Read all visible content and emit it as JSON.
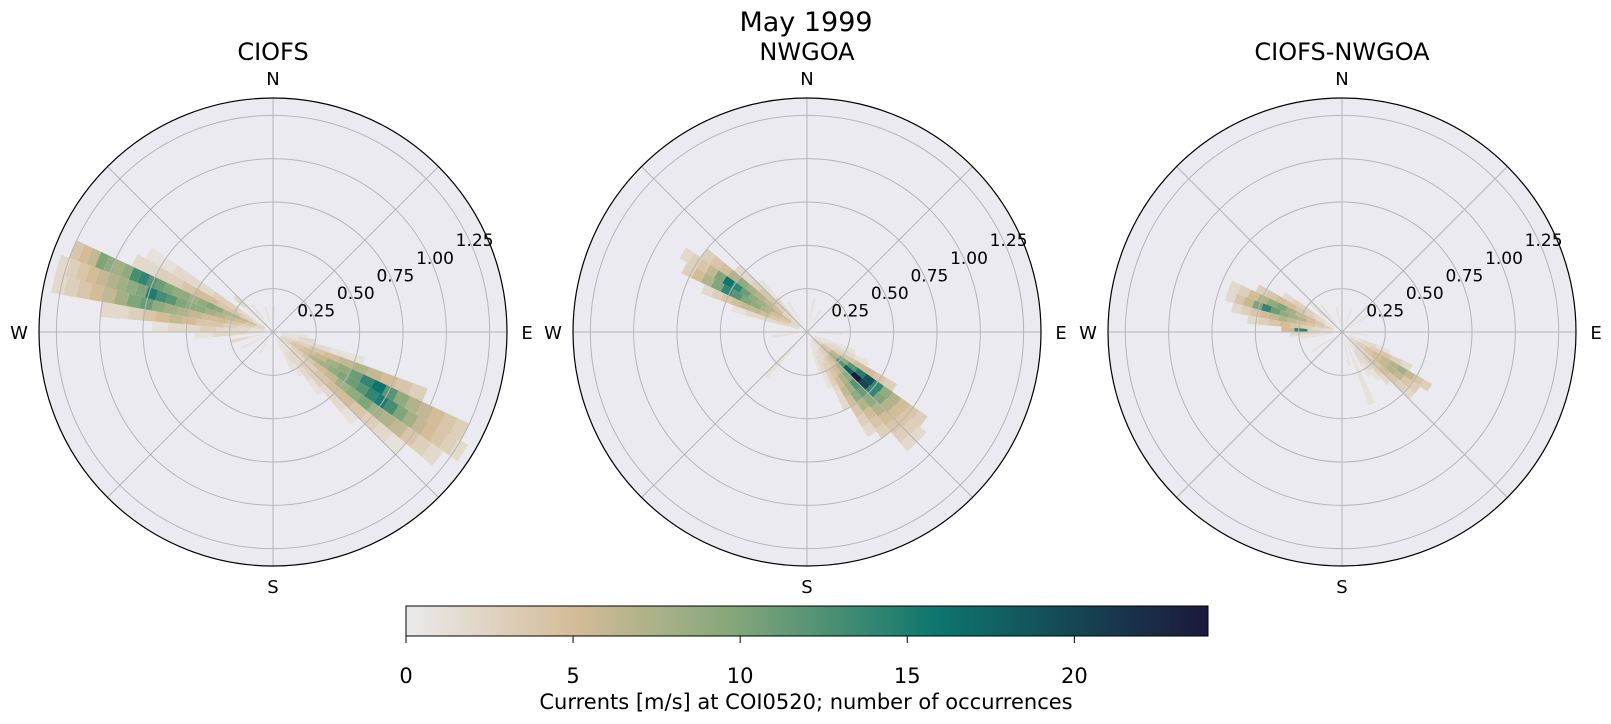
{
  "title": "May 1999",
  "chart_data": [
    {
      "type": "polar-histogram",
      "title": "CIOFS",
      "direction_labels": [
        "N",
        "E",
        "S",
        "W"
      ],
      "r_ticks": [
        "0.25",
        "0.50",
        "0.75",
        "1.00",
        "1.25"
      ],
      "rlim": [
        0,
        1.35
      ],
      "grid": true,
      "bins": [
        {
          "dir": 292.5,
          "r": [
            0.05,
            1.25
          ],
          "counts": [
            3,
            5,
            6,
            7,
            7,
            9,
            10,
            9,
            8,
            9,
            9,
            10,
            11,
            12,
            14,
            13,
            9,
            8,
            9,
            10,
            6,
            5,
            4
          ]
        },
        {
          "dir": 287.5,
          "r": [
            0.05,
            1.3
          ],
          "counts": [
            2,
            4,
            5,
            6,
            7,
            8,
            9,
            9,
            10,
            12,
            13,
            15,
            10,
            9,
            8,
            7,
            6,
            5,
            4,
            3,
            2
          ]
        },
        {
          "dir": 282.5,
          "r": [
            0.05,
            1.3
          ],
          "counts": [
            2,
            3,
            4,
            5,
            5,
            6,
            7,
            8,
            9,
            11,
            10,
            8,
            6,
            5,
            4,
            3,
            2
          ]
        },
        {
          "dir": 277.5,
          "r": [
            0.05,
            1.0
          ],
          "counts": [
            1,
            2,
            3,
            4,
            4,
            5,
            6,
            5,
            4,
            3,
            2,
            2
          ]
        },
        {
          "dir": 297.5,
          "r": [
            0.05,
            0.9
          ],
          "counts": [
            2,
            3,
            4,
            4,
            5,
            5,
            4,
            3,
            3,
            2,
            2
          ]
        },
        {
          "dir": 302.5,
          "r": [
            0.05,
            0.85
          ],
          "counts": [
            1,
            2,
            3,
            3,
            2,
            2,
            2,
            1,
            1
          ]
        },
        {
          "dir": 272.5,
          "r": [
            0.05,
            0.7
          ],
          "counts": [
            1,
            2,
            2,
            3,
            2,
            2,
            1
          ]
        },
        {
          "dir": 267.5,
          "r": [
            0.05,
            0.45
          ],
          "counts": [
            1,
            2,
            2,
            1
          ]
        },
        {
          "dir": 122.5,
          "r": [
            0.05,
            1.3
          ],
          "counts": [
            3,
            4,
            5,
            7,
            8,
            9,
            10,
            11,
            12,
            14,
            15,
            13,
            10,
            8,
            6,
            5,
            4,
            3,
            2
          ]
        },
        {
          "dir": 117.5,
          "r": [
            0.05,
            1.25
          ],
          "counts": [
            2,
            4,
            5,
            6,
            8,
            9,
            11,
            14,
            16,
            12,
            9,
            7,
            6,
            5,
            4,
            3
          ]
        },
        {
          "dir": 127.5,
          "r": [
            0.05,
            1.2
          ],
          "counts": [
            2,
            3,
            4,
            5,
            6,
            8,
            9,
            10,
            8,
            7,
            6,
            4,
            3,
            2
          ]
        },
        {
          "dir": 112.5,
          "r": [
            0.05,
            0.95
          ],
          "counts": [
            2,
            3,
            4,
            5,
            6,
            7,
            6,
            5,
            4,
            3
          ]
        },
        {
          "dir": 132.5,
          "r": [
            0.05,
            1.0
          ],
          "counts": [
            1,
            2,
            3,
            4,
            5,
            5,
            4,
            3,
            2,
            1
          ]
        },
        {
          "dir": 137.5,
          "r": [
            0.05,
            0.7
          ],
          "counts": [
            1,
            2,
            3,
            3,
            2,
            2,
            1
          ]
        },
        {
          "dir": 142.5,
          "r": [
            0.05,
            0.45
          ],
          "counts": [
            1,
            2,
            2,
            1
          ]
        },
        {
          "dir": 107.5,
          "r": [
            0.05,
            0.55
          ],
          "counts": [
            1,
            2,
            2,
            1,
            1
          ]
        },
        {
          "dir": 102.5,
          "r": [
            0.05,
            0.25
          ],
          "counts": [
            1,
            2
          ]
        },
        {
          "dir": 147.5,
          "r": [
            0.05,
            0.3
          ],
          "counts": [
            1,
            2,
            1
          ]
        },
        {
          "dir": 152.5,
          "r": [
            0.05,
            0.25
          ],
          "counts": [
            1,
            1
          ]
        },
        {
          "dir": 312.5,
          "r": [
            0.05,
            0.3
          ],
          "counts": [
            1,
            1,
            2
          ]
        },
        {
          "dir": 322.5,
          "r": [
            0.05,
            0.2
          ],
          "counts": [
            1,
            1
          ]
        },
        {
          "dir": 342.5,
          "r": [
            0.05,
            0.15
          ],
          "counts": [
            1
          ]
        },
        {
          "dir": 2.5,
          "r": [
            0.05,
            0.15
          ],
          "counts": [
            1
          ]
        },
        {
          "dir": 212.5,
          "r": [
            0.05,
            0.15
          ],
          "counts": [
            1
          ]
        },
        {
          "dir": 242.5,
          "r": [
            0.05,
            0.2
          ],
          "counts": [
            1,
            1
          ]
        },
        {
          "dir": 257.5,
          "r": [
            0.05,
            0.25
          ],
          "counts": [
            1,
            2
          ]
        },
        {
          "dir": 97.5,
          "r": [
            0.05,
            0.2
          ],
          "counts": [
            1,
            1
          ]
        }
      ]
    },
    {
      "type": "polar-histogram",
      "title": "NWGOA",
      "direction_labels": [
        "N",
        "E",
        "S",
        "W"
      ],
      "r_ticks": [
        "0.25",
        "0.50",
        "0.75",
        "1.00",
        "1.25"
      ],
      "rlim": [
        0,
        1.35
      ],
      "grid": true,
      "bins": [
        {
          "dir": 302.5,
          "r": [
            0.05,
            0.85
          ],
          "counts": [
            3,
            5,
            6,
            7,
            8,
            9,
            11,
            14,
            16,
            10,
            6,
            4,
            3,
            2
          ]
        },
        {
          "dir": 297.5,
          "r": [
            0.05,
            0.8
          ],
          "counts": [
            2,
            4,
            5,
            7,
            9,
            10,
            12,
            14,
            10,
            7,
            5,
            3
          ]
        },
        {
          "dir": 307.5,
          "r": [
            0.05,
            0.75
          ],
          "counts": [
            2,
            3,
            5,
            6,
            7,
            8,
            9,
            7,
            5,
            4,
            3
          ]
        },
        {
          "dir": 292.5,
          "r": [
            0.05,
            0.65
          ],
          "counts": [
            2,
            3,
            4,
            5,
            6,
            6,
            5,
            4,
            3,
            2
          ]
        },
        {
          "dir": 312.5,
          "r": [
            0.05,
            0.55
          ],
          "counts": [
            1,
            2,
            3,
            4,
            4,
            3,
            2,
            2
          ]
        },
        {
          "dir": 317.5,
          "r": [
            0.05,
            0.4
          ],
          "counts": [
            1,
            2,
            2,
            1,
            1
          ]
        },
        {
          "dir": 287.5,
          "r": [
            0.05,
            0.45
          ],
          "counts": [
            1,
            2,
            2,
            2,
            1
          ]
        },
        {
          "dir": 132.5,
          "r": [
            0.05,
            0.9
          ],
          "counts": [
            3,
            5,
            8,
            12,
            18,
            24,
            20,
            14,
            10,
            7,
            5,
            4,
            3,
            2
          ]
        },
        {
          "dir": 127.5,
          "r": [
            0.05,
            0.85
          ],
          "counts": [
            2,
            4,
            6,
            9,
            12,
            15,
            19,
            14,
            9,
            7,
            5,
            4,
            3
          ]
        },
        {
          "dir": 137.5,
          "r": [
            0.05,
            0.9
          ],
          "counts": [
            2,
            3,
            5,
            7,
            9,
            12,
            11,
            9,
            7,
            5,
            4,
            3,
            2
          ]
        },
        {
          "dir": 142.5,
          "r": [
            0.05,
            0.75
          ],
          "counts": [
            2,
            3,
            4,
            5,
            7,
            8,
            9,
            7,
            5,
            4,
            3
          ]
        },
        {
          "dir": 122.5,
          "r": [
            0.05,
            0.6
          ],
          "counts": [
            1,
            2,
            3,
            4,
            5,
            5,
            4,
            3
          ]
        },
        {
          "dir": 147.5,
          "r": [
            0.05,
            0.7
          ],
          "counts": [
            1,
            2,
            3,
            4,
            5,
            6,
            5,
            4,
            3,
            2
          ]
        },
        {
          "dir": 152.5,
          "r": [
            0.05,
            0.5
          ],
          "counts": [
            1,
            2,
            3,
            3,
            2,
            2
          ]
        },
        {
          "dir": 117.5,
          "r": [
            0.05,
            0.4
          ],
          "counts": [
            1,
            2,
            2,
            1
          ]
        },
        {
          "dir": 157.5,
          "r": [
            0.05,
            0.35
          ],
          "counts": [
            1,
            2,
            1
          ]
        },
        {
          "dir": 112.5,
          "r": [
            0.05,
            0.3
          ],
          "counts": [
            1,
            1
          ]
        },
        {
          "dir": 162.5,
          "r": [
            0.05,
            0.25
          ],
          "counts": [
            1,
            1
          ]
        },
        {
          "dir": 327.5,
          "r": [
            0.05,
            0.2
          ],
          "counts": [
            1,
            1
          ]
        },
        {
          "dir": 12.5,
          "r": [
            0.05,
            0.2
          ],
          "counts": [
            1,
            1
          ]
        },
        {
          "dir": 32.5,
          "r": [
            0.05,
            0.15
          ],
          "counts": [
            1
          ]
        },
        {
          "dir": 222.5,
          "r": [
            0.05,
            0.35
          ],
          "counts": [
            1,
            1,
            1
          ]
        },
        {
          "dir": 262.5,
          "r": [
            0.05,
            0.2
          ],
          "counts": [
            1,
            1
          ]
        },
        {
          "dir": 92.5,
          "r": [
            0.05,
            0.2
          ],
          "counts": [
            1,
            1
          ]
        }
      ]
    },
    {
      "type": "polar-histogram",
      "title": "CIOFS-NWGOA",
      "direction_labels": [
        "N",
        "E",
        "S",
        "W"
      ],
      "r_ticks": [
        "0.25",
        "0.50",
        "0.75",
        "1.00",
        "1.25"
      ],
      "rlim": [
        0,
        1.35
      ],
      "grid": true,
      "bins": [
        {
          "dir": 287.5,
          "r": [
            0.05,
            0.7
          ],
          "counts": [
            3,
            4,
            5,
            7,
            8,
            9,
            11,
            14,
            10,
            6,
            4,
            2
          ]
        },
        {
          "dir": 292.5,
          "r": [
            0.05,
            0.7
          ],
          "counts": [
            2,
            4,
            5,
            6,
            8,
            10,
            9,
            7,
            5,
            3,
            2
          ]
        },
        {
          "dir": 282.5,
          "r": [
            0.05,
            0.65
          ],
          "counts": [
            2,
            3,
            4,
            5,
            6,
            7,
            6,
            5,
            4,
            3,
            2
          ]
        },
        {
          "dir": 297.5,
          "r": [
            0.05,
            0.55
          ],
          "counts": [
            1,
            2,
            3,
            4,
            5,
            5,
            4,
            3
          ]
        },
        {
          "dir": 277.5,
          "r": [
            0.05,
            0.55
          ],
          "counts": [
            1,
            2,
            3,
            4,
            5,
            4,
            3,
            2
          ]
        },
        {
          "dir": 272.5,
          "r": [
            0.05,
            0.35
          ],
          "counts": [
            2,
            3,
            14,
            5
          ]
        },
        {
          "dir": 302.5,
          "r": [
            0.05,
            0.4
          ],
          "counts": [
            1,
            2,
            3,
            3,
            2
          ]
        },
        {
          "dir": 267.5,
          "r": [
            0.05,
            0.3
          ],
          "counts": [
            1,
            2,
            2
          ]
        },
        {
          "dir": 262.5,
          "r": [
            0.05,
            0.25
          ],
          "counts": [
            1,
            1
          ]
        },
        {
          "dir": 312.5,
          "r": [
            0.05,
            0.25
          ],
          "counts": [
            1,
            2,
            1
          ]
        },
        {
          "dir": 322.5,
          "r": [
            0.05,
            0.2
          ],
          "counts": [
            1,
            1
          ]
        },
        {
          "dir": 127.5,
          "r": [
            0.05,
            0.55
          ],
          "counts": [
            2,
            3,
            4,
            5,
            6,
            7,
            6,
            4,
            3
          ]
        },
        {
          "dir": 122.5,
          "r": [
            0.05,
            0.6
          ],
          "counts": [
            2,
            3,
            4,
            5,
            6,
            7,
            8,
            6,
            4,
            3
          ]
        },
        {
          "dir": 132.5,
          "r": [
            0.05,
            0.55
          ],
          "counts": [
            1,
            2,
            3,
            4,
            5,
            4,
            3,
            2
          ]
        },
        {
          "dir": 117.5,
          "r": [
            0.05,
            0.45
          ],
          "counts": [
            1,
            2,
            3,
            4,
            3,
            2
          ]
        },
        {
          "dir": 137.5,
          "r": [
            0.05,
            0.4
          ],
          "counts": [
            1,
            2,
            3,
            3,
            2
          ]
        },
        {
          "dir": 142.5,
          "r": [
            0.05,
            0.35
          ],
          "counts": [
            1,
            2,
            2,
            1
          ]
        },
        {
          "dir": 147.5,
          "r": [
            0.05,
            0.3
          ],
          "counts": [
            1,
            2,
            1
          ]
        },
        {
          "dir": 112.5,
          "r": [
            0.05,
            0.3
          ],
          "counts": [
            1,
            2,
            1
          ]
        },
        {
          "dir": 157.5,
          "r": [
            0.05,
            0.45
          ],
          "counts": [
            1,
            1,
            1,
            1
          ]
        },
        {
          "dir": 167.5,
          "r": [
            0.05,
            0.2
          ],
          "counts": [
            1,
            1
          ]
        },
        {
          "dir": 57.5,
          "r": [
            0.05,
            0.2
          ],
          "counts": [
            1,
            1
          ]
        },
        {
          "dir": 22.5,
          "r": [
            0.05,
            0.15
          ],
          "counts": [
            1
          ]
        },
        {
          "dir": 237.5,
          "r": [
            0.05,
            0.2
          ],
          "counts": [
            1,
            1
          ]
        },
        {
          "dir": 97.5,
          "r": [
            0.05,
            0.15
          ],
          "counts": [
            1
          ]
        },
        {
          "dir": 347.5,
          "r": [
            0.05,
            0.15
          ],
          "counts": [
            1
          ]
        }
      ]
    }
  ],
  "colorbar": {
    "label": "Currents [m/s] at COI0520; number of occurrences",
    "ticks": [
      "0",
      "5",
      "10",
      "15",
      "20"
    ],
    "range": [
      0,
      24
    ],
    "colormap": [
      "#ebeaec",
      "#d4bc98",
      "#88a87a",
      "#0e766e",
      "#1c183a"
    ]
  }
}
